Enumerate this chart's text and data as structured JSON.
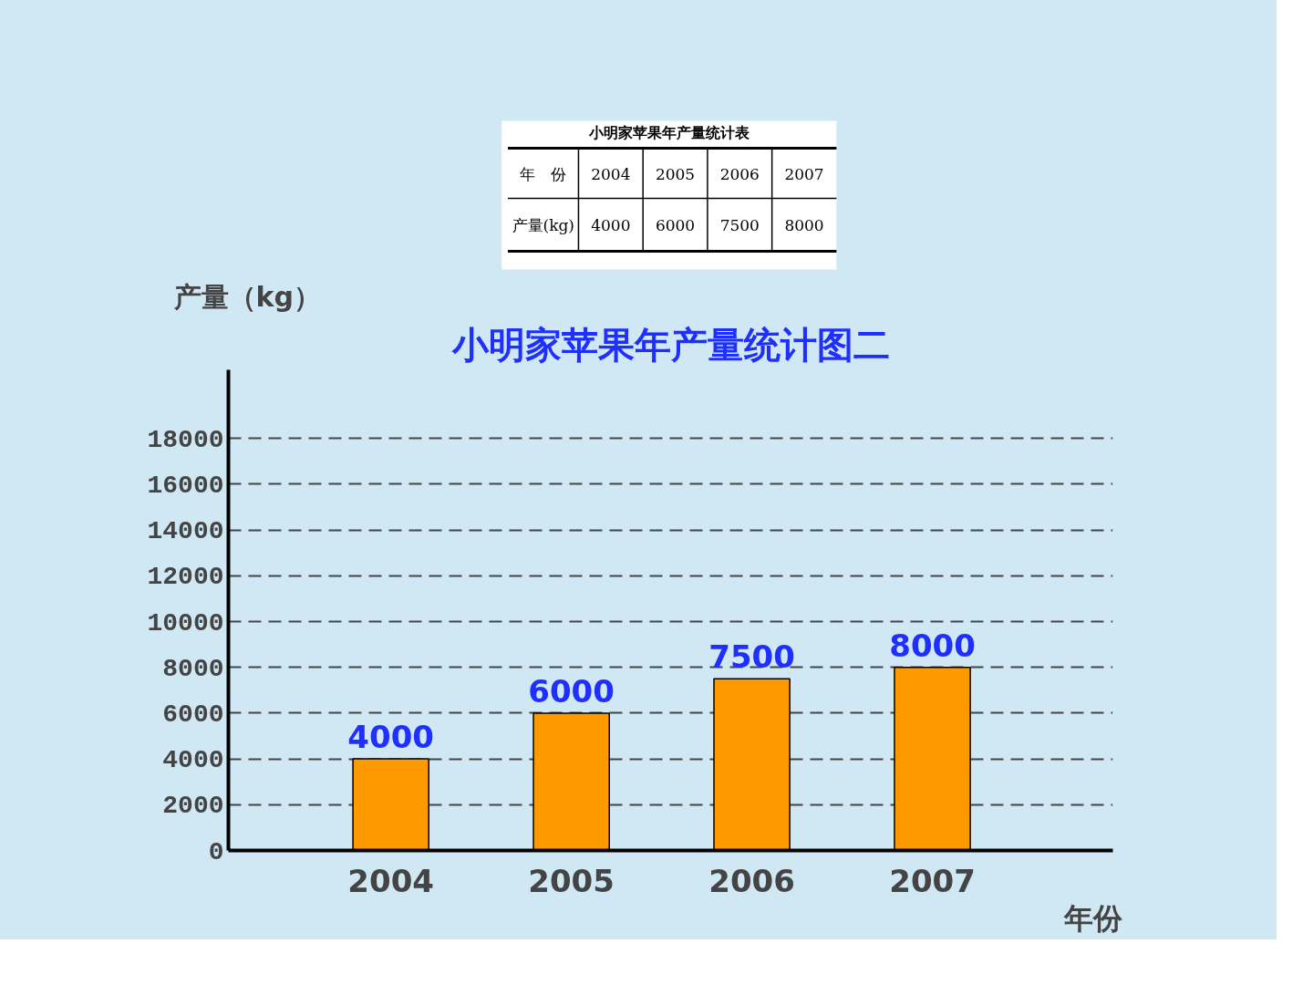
{
  "chart_data": {
    "type": "bar",
    "title": "小明家苹果年产量统计图二",
    "xlabel": "年份",
    "ylabel": "产量（kg）",
    "categories": [
      "2004",
      "2005",
      "2006",
      "2007"
    ],
    "values": [
      4000,
      6000,
      7500,
      8000
    ],
    "color": "#ff9900",
    "ylim": [
      0,
      21000
    ],
    "yticks": [
      0,
      2000,
      4000,
      6000,
      8000,
      10000,
      12000,
      14000,
      16000,
      18000
    ],
    "grid": "y",
    "data_labels": true,
    "annotations": [
      "小明家苹果年产量统计表",
      "年　份",
      "2004",
      "2005",
      "2006",
      "2007",
      "产量(kg)",
      "4000",
      "6000",
      "7500",
      "8000"
    ]
  }
}
